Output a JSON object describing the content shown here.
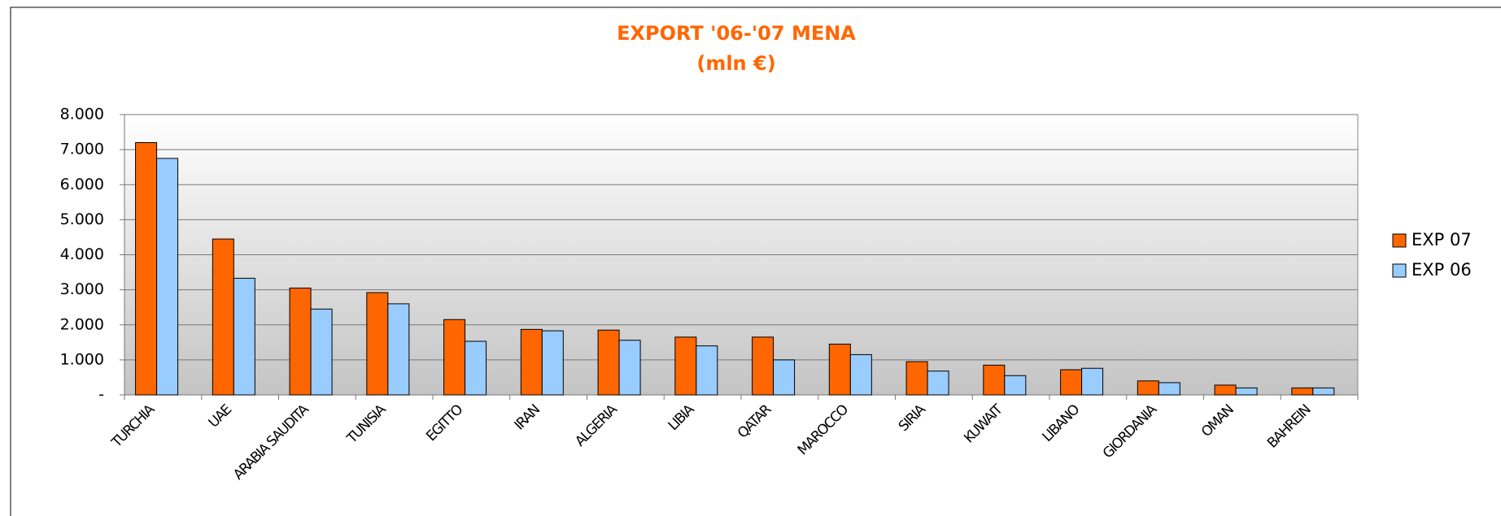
{
  "chart_data": {
    "type": "bar",
    "title": "EXPORT '06-'07 MENA",
    "subtitle": "(mln €)",
    "categories": [
      "TURCHIA",
      "UAE",
      "ARABIA SAUDITA",
      "TUNISIA",
      "EGITTO",
      "IRAN",
      "ALGERIA",
      "LIBIA",
      "QATAR",
      "MAROCCO",
      "SIRIA",
      "KUWAIT",
      "LIBANO",
      "GIORDANIA",
      "OMAN",
      "BAHREIN"
    ],
    "series": [
      {
        "name": "EXP 07",
        "color": "#ff6600",
        "values": [
          7200,
          4450,
          3050,
          2920,
          2150,
          1870,
          1850,
          1650,
          1650,
          1450,
          950,
          850,
          720,
          400,
          280,
          200
        ]
      },
      {
        "name": "EXP 06",
        "color": "#99ccff",
        "values": [
          6750,
          3330,
          2450,
          2600,
          1530,
          1830,
          1560,
          1400,
          1000,
          1150,
          680,
          550,
          760,
          350,
          200,
          200
        ]
      }
    ],
    "ylim": [
      0,
      8000
    ],
    "yticks": [
      {
        "value": 0,
        "label": "-"
      },
      {
        "value": 1000,
        "label": "1.000"
      },
      {
        "value": 2000,
        "label": "2.000"
      },
      {
        "value": 3000,
        "label": "3.000"
      },
      {
        "value": 4000,
        "label": "4.000"
      },
      {
        "value": 5000,
        "label": "5.000"
      },
      {
        "value": 6000,
        "label": "6.000"
      },
      {
        "value": 7000,
        "label": "7.000"
      },
      {
        "value": 8000,
        "label": "8.000"
      }
    ],
    "grid": true,
    "legend": "right"
  }
}
